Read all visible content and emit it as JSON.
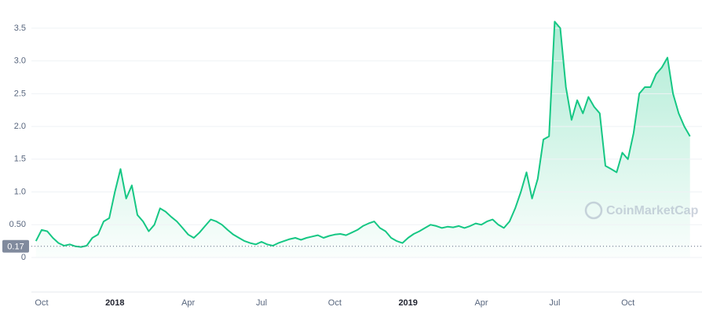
{
  "chart_data": {
    "type": "area",
    "color": "#16c784",
    "grid": true,
    "ylim": [
      0,
      3.93
    ],
    "yticks": [
      0,
      {
        "value": 0.5,
        "label": "0.50"
      },
      {
        "value": 1,
        "label": "1.0"
      },
      1.5,
      {
        "value": 2,
        "label": "2.0"
      },
      2.5,
      {
        "value": 3,
        "label": "3.0"
      },
      3.5
    ],
    "reference_line": 0.17,
    "watermark": "CoinMarketCap",
    "categories": [
      null,
      "Oct",
      null,
      null,
      null,
      null,
      null,
      null,
      null,
      null,
      null,
      null,
      null,
      null,
      "2018",
      null,
      null,
      null,
      null,
      null,
      null,
      null,
      null,
      null,
      null,
      null,
      null,
      "Apr",
      null,
      null,
      null,
      null,
      null,
      null,
      null,
      null,
      null,
      null,
      null,
      null,
      "Jul",
      null,
      null,
      null,
      null,
      null,
      null,
      null,
      null,
      null,
      null,
      null,
      null,
      "Oct",
      null,
      null,
      null,
      null,
      null,
      null,
      null,
      null,
      null,
      null,
      null,
      null,
      "2019",
      null,
      null,
      null,
      null,
      null,
      null,
      null,
      null,
      null,
      null,
      null,
      null,
      "Apr",
      null,
      null,
      null,
      null,
      null,
      null,
      null,
      null,
      null,
      null,
      null,
      null,
      "Jul",
      null,
      null,
      null,
      null,
      null,
      null,
      null,
      null,
      null,
      null,
      null,
      null,
      "Oct",
      null,
      null,
      null,
      null,
      null,
      null,
      null,
      null,
      null,
      null,
      null
    ],
    "values": [
      0.25,
      0.42,
      0.4,
      0.3,
      0.22,
      0.18,
      0.2,
      0.17,
      0.16,
      0.18,
      0.3,
      0.35,
      0.55,
      0.6,
      1.0,
      1.35,
      0.9,
      1.1,
      0.65,
      0.55,
      0.4,
      0.5,
      0.75,
      0.7,
      0.62,
      0.55,
      0.45,
      0.35,
      0.3,
      0.38,
      0.48,
      0.58,
      0.55,
      0.5,
      0.42,
      0.35,
      0.3,
      0.25,
      0.22,
      0.2,
      0.24,
      0.2,
      0.18,
      0.22,
      0.25,
      0.28,
      0.3,
      0.27,
      0.3,
      0.32,
      0.34,
      0.3,
      0.33,
      0.35,
      0.36,
      0.34,
      0.38,
      0.42,
      0.48,
      0.52,
      0.55,
      0.45,
      0.4,
      0.3,
      0.25,
      0.22,
      0.3,
      0.36,
      0.4,
      0.45,
      0.5,
      0.48,
      0.45,
      0.47,
      0.46,
      0.48,
      0.45,
      0.48,
      0.52,
      0.5,
      0.55,
      0.58,
      0.5,
      0.45,
      0.55,
      0.75,
      1.0,
      1.3,
      0.9,
      1.2,
      1.8,
      1.85,
      3.6,
      3.5,
      2.6,
      2.1,
      2.4,
      2.2,
      2.45,
      2.3,
      2.2,
      1.4,
      1.35,
      1.3,
      1.6,
      1.5,
      1.9,
      2.5,
      2.6,
      2.6,
      2.8,
      2.9,
      3.05,
      2.5,
      2.2,
      2.0,
      1.85
    ]
  }
}
